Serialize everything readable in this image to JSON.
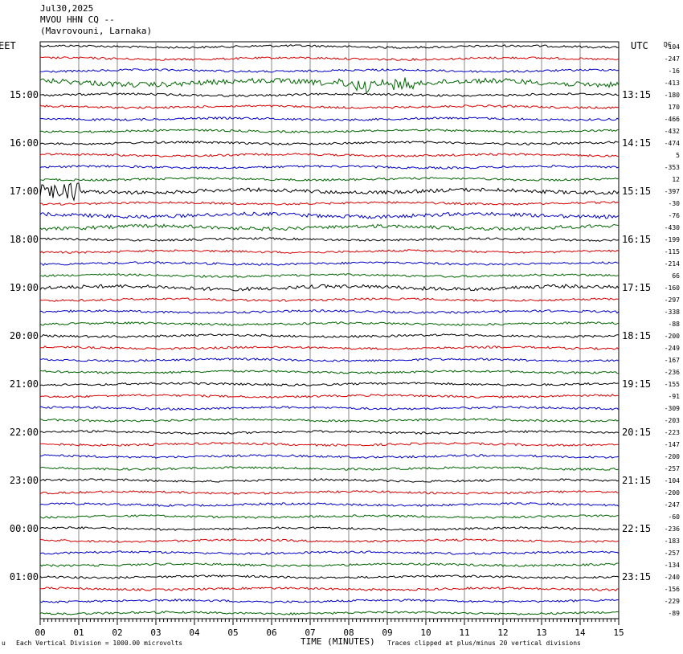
{
  "header": {
    "date": "Jul30,2025",
    "station": "MVOU HHN CQ --",
    "location": "(Mavrovouni, Larnaka)"
  },
  "labels": {
    "left_tz": "EET",
    "right_tz": "UTC",
    "dc": "DC",
    "x_axis": "TIME (MINUTES)",
    "scale_note": "Each Vertical Division = 1000.00 microvolts",
    "clip_note": "Traces clipped at plus/minus 20 vertical divisions",
    "corner_mark": "u"
  },
  "colors": {
    "black": "#000000",
    "red": "#dd0000",
    "blue": "#0000cc",
    "green": "#006600",
    "grid": "#888888"
  },
  "chart_data": {
    "type": "line",
    "xlabel": "TIME (MINUTES)",
    "xlim": [
      0,
      15
    ],
    "x_ticks": [
      "00",
      "01",
      "02",
      "03",
      "04",
      "05",
      "06",
      "07",
      "08",
      "09",
      "10",
      "11",
      "12",
      "13",
      "14",
      "15"
    ],
    "left_hour_labels": [
      "15:00",
      "16:00",
      "17:00",
      "18:00",
      "19:00",
      "20:00",
      "21:00",
      "22:00",
      "23:00",
      "00:00",
      "01:00"
    ],
    "right_hour_labels": [
      "13:15",
      "14:15",
      "15:15",
      "16:15",
      "17:15",
      "18:15",
      "19:15",
      "20:15",
      "21:15",
      "22:15",
      "23:15"
    ],
    "trace_colors": [
      "black",
      "red",
      "blue",
      "green"
    ],
    "dc_offsets": [
      -104,
      -247,
      -16,
      -413,
      -180,
      170,
      -466,
      -432,
      -474,
      5,
      -353,
      12,
      -397,
      -30,
      -76,
      -430,
      -199,
      -115,
      -214,
      66,
      -160,
      -297,
      -338,
      -88,
      -200,
      -249,
      -167,
      -236,
      -155,
      -91,
      -309,
      -203,
      -223,
      -147,
      -200,
      -257,
      -104,
      -200,
      -247,
      -60,
      -236,
      -183,
      -257,
      -134,
      -240,
      -156,
      -229,
      -89
    ]
  }
}
